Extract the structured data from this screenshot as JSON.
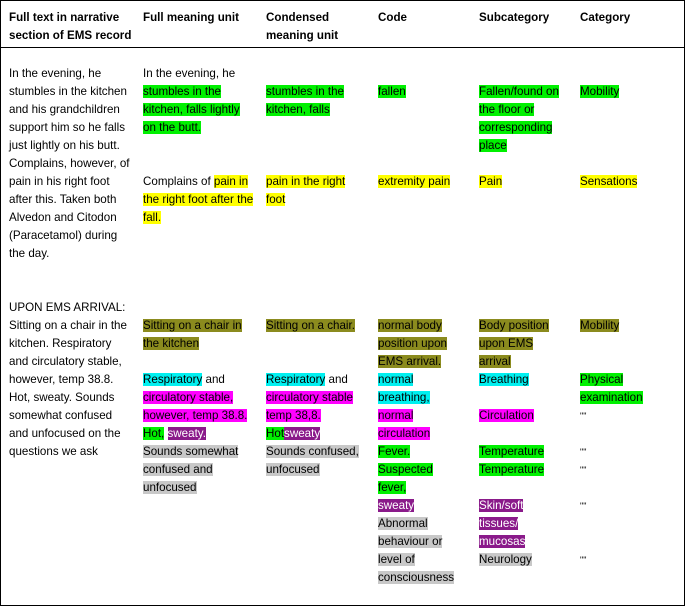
{
  "headers": {
    "full_text": "Full text in narrative section of EMS record",
    "full_meaning": "Full meaning unit",
    "condensed": "Condensed meaning unit",
    "code": "Code",
    "subcategory": "Subcategory",
    "category": "Category"
  },
  "narrative": {
    "part1": "In the evening, he stumbles in the kitchen and his grandchildren support him so he falls just lightly on his butt. Complains, however, of pain in his right foot after this. Taken both Alvedon and Citodon (Paracetamol) during the day.",
    "part2": "UPON EMS ARRIVAL: Sitting on a chair in the kitchen. Respiratory and circulatory stable, however, temp 38.8. Hot, sweaty. Sounds somewhat confused and unfocused on the questions we ask"
  },
  "full_meaning": {
    "fall_plain": "In the evening, he",
    "fall_hl": "stumbles in the kitchen, falls lightly on the butt.",
    "pain_plain": "Complains of",
    "pain_hl": "pain in the right foot after the fall.",
    "sitting": "Sitting on a chair in the kitchen",
    "resp": "Respiratory",
    "and": "and",
    "circ": "circulatory stable, however, temp 38.8.",
    "hot": "Hot,",
    "sweaty": "sweaty.",
    "sounds": "Sounds somewhat confused and unfocused"
  },
  "condensed": {
    "fall": "stumbles in the kitchen, falls",
    "pain": "pain in the right foot",
    "sitting": "Sitting on a chair.",
    "resp": "Respiratory",
    "and": "and",
    "circ": "circulatory stable temp 38,8.",
    "hot": "Hot",
    "sweaty": "sweaty",
    "sounds": "Sounds confused, unfocused"
  },
  "code": {
    "fallen": "fallen",
    "pain": "extremity pain",
    "normal_body": "normal body position upon EMS arrival.",
    "normal_breathing": "normal breathing,",
    "normal_circ": "normal circulation",
    "fever": "Fever.",
    "suspected_fever": "Suspected fever,",
    "sweaty": "sweaty",
    "abnormal": "Abnormal behaviour or level of consciousness"
  },
  "subcategory": {
    "fallen": "Fallen/found on the floor or corresponding place",
    "pain": "Pain",
    "body_position": "Body position upon EMS arrival",
    "breathing": "Breathing",
    "circulation": "Circulation",
    "temp1": "Temperature",
    "temp2": "Temperature",
    "skin": "Skin/soft tissues/ mucosas",
    "neurology": "Neurology"
  },
  "category": {
    "mobility1": "Mobility",
    "sensations": "Sensations",
    "mobility2": "Mobility",
    "physical": "Physical examination",
    "ditto1": "\"\"",
    "ditto2": "\"\"",
    "ditto3": "\"\"",
    "ditto4": "\"\"",
    "ditto5": "\"\""
  },
  "colors": {
    "green": "#00f000",
    "yellow": "#ffff00",
    "olive": "#8b8b1e",
    "cyan": "#00f0f0",
    "magenta": "#ff00ff",
    "purple": "#8a1a8a",
    "grey": "#c8c8c8"
  }
}
